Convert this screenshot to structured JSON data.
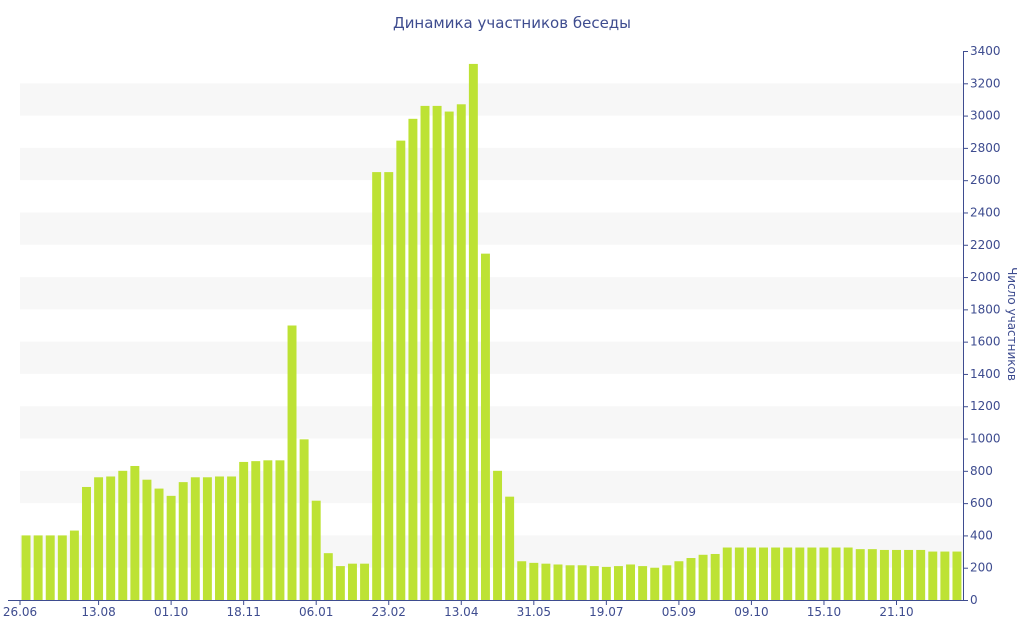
{
  "chart_data": {
    "type": "bar",
    "title": "Динамика участников беседы",
    "xlabel": "",
    "ylabel": "Число участников",
    "ylim": [
      0,
      3400
    ],
    "y_ticks": [
      0,
      200,
      400,
      600,
      800,
      1000,
      1200,
      1400,
      1600,
      1800,
      2000,
      2200,
      2400,
      2600,
      2800,
      3000,
      3200,
      3400
    ],
    "x_tick_labels": [
      "26.06",
      "13.08",
      "01.10",
      "18.11",
      "06.01",
      "23.02",
      "13.04",
      "31.05",
      "19.07",
      "05.09",
      "09.10",
      "15.10",
      "21.10"
    ],
    "x_tick_bar_index": [
      0,
      6,
      12,
      18,
      24,
      30,
      36,
      42,
      48,
      54,
      60,
      66,
      72
    ],
    "bar_color": "#bde234",
    "grid_band_color": "#f7f7f7",
    "text_color": "#3e4c8f",
    "values": [
      400,
      400,
      400,
      400,
      430,
      700,
      760,
      765,
      800,
      830,
      745,
      690,
      645,
      730,
      760,
      760,
      765,
      765,
      855,
      860,
      865,
      865,
      1700,
      995,
      615,
      290,
      210,
      225,
      225,
      2650,
      2650,
      2845,
      2980,
      3060,
      3060,
      3025,
      3070,
      3320,
      2145,
      800,
      640,
      240,
      230,
      225,
      220,
      215,
      215,
      210,
      205,
      210,
      220,
      210,
      200,
      215,
      240,
      260,
      280,
      285,
      325,
      325,
      325,
      325,
      325,
      325,
      325,
      325,
      325,
      325,
      325,
      315,
      315,
      310,
      310,
      310,
      310,
      300,
      300,
      300
    ]
  }
}
